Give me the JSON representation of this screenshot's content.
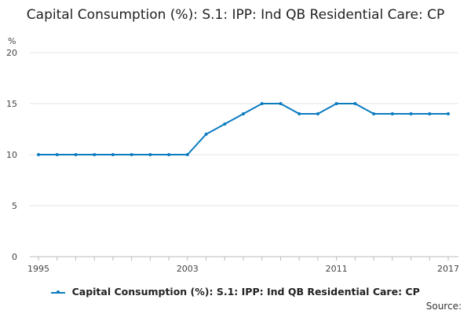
{
  "chart_data": {
    "type": "line",
    "title": "Capital Consumption (%): S.1: IPP: Ind QB Residential Care: CP",
    "ylabel": "%",
    "xlabel": "",
    "ylim": [
      0,
      20
    ],
    "yticks": [
      0,
      5,
      10,
      15,
      20
    ],
    "xlim": [
      1995,
      2017
    ],
    "xticks": [
      1995,
      2003,
      2011,
      2017
    ],
    "grid": true,
    "legend_position": "bottom",
    "series": [
      {
        "name": "Capital Consumption (%): S.1: IPP: Ind QB Residential Care: CP",
        "color": "#0b7bc0",
        "x": [
          1995,
          1996,
          1997,
          1998,
          1999,
          2000,
          2001,
          2002,
          2003,
          2004,
          2005,
          2006,
          2007,
          2008,
          2009,
          2010,
          2011,
          2012,
          2013,
          2014,
          2015,
          2016,
          2017
        ],
        "values": [
          10,
          10,
          10,
          10,
          10,
          10,
          10,
          10,
          10,
          12,
          13,
          14,
          15,
          15,
          14,
          14,
          15,
          15,
          14,
          14,
          14,
          14,
          14
        ]
      }
    ]
  },
  "source_label": "Source:"
}
